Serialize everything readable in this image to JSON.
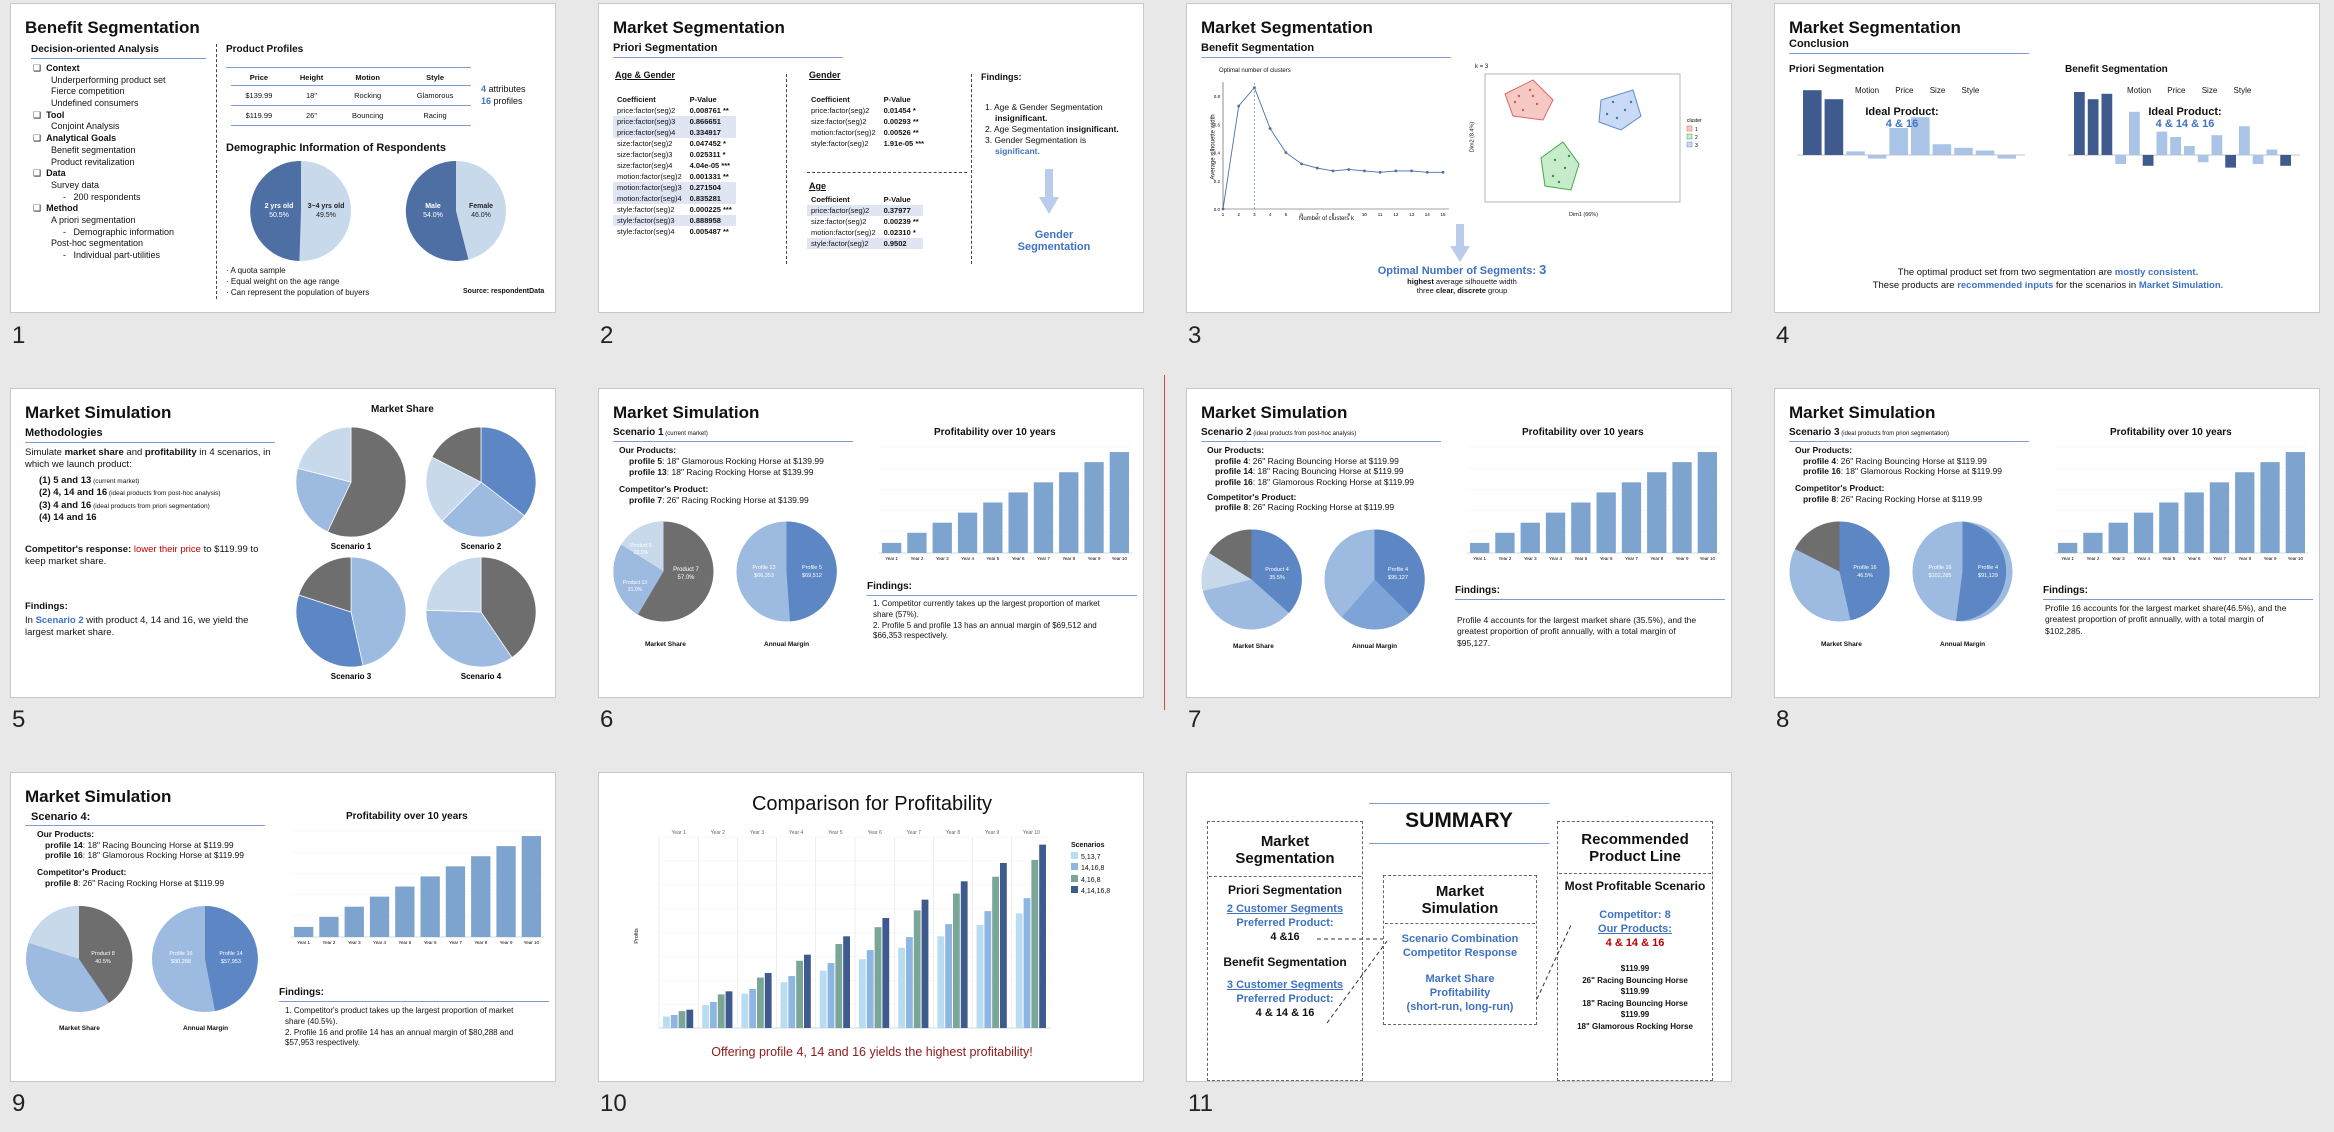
{
  "slide_numbers": [
    "1",
    "2",
    "3",
    "4",
    "5",
    "6",
    "7",
    "8",
    "9",
    "10",
    "11"
  ],
  "s1": {
    "title": "Benefit Segmentation",
    "left_head": "Decision-oriented Analysis",
    "items": [
      {
        "h": "Context",
        "l": [
          "Underperforming product set",
          "Fierce competition",
          "Undefined consumers"
        ]
      },
      {
        "h": "Tool",
        "l": [
          "Conjoint Analysis"
        ]
      },
      {
        "h": "Analytical Goals",
        "l": [
          "Benefit segmentation",
          "Product revitalization"
        ]
      },
      {
        "h": "Data",
        "l": [
          "Survey data",
          "200 respondents"
        ]
      },
      {
        "h": "Method",
        "l": [
          "A priori segmentation",
          "Demographic information",
          "Post-hoc segmentation",
          "Individual part-utilities"
        ]
      }
    ],
    "profiles_title": "Product Profiles",
    "profiles_head": [
      "Price",
      "Height",
      "Motion",
      "Style"
    ],
    "profiles_rows": [
      [
        "$139.99",
        "18\"",
        "Rocking",
        "Glamorous"
      ],
      [
        "$119.99",
        "26\"",
        "Bouncing",
        "Racing"
      ]
    ],
    "attr_num": "4",
    "attr_txt": "attributes",
    "prof_num": "16",
    "prof_txt": "profiles",
    "demo_title": "Demographic Information of Respondents",
    "pie1": [
      "2 yrs old",
      "50.5%",
      "3~4 yrs old",
      "49.5%"
    ],
    "pie2": [
      "Male",
      "54.0%",
      "Female",
      "46.0%"
    ],
    "notes": [
      "· A quota sample",
      "· Equal weight on the age range",
      "· Can represent the population of buyers"
    ],
    "source": "Source: respondentData"
  },
  "s2": {
    "title": "Market Segmentation",
    "sub": "Priori Segmentation",
    "h1": "Age & Gender",
    "h2": "Gender",
    "h3": "Findings:",
    "h4": "Age",
    "col": [
      "Coefficient",
      "P-Value"
    ],
    "ag": [
      [
        "price:factor(seg)2",
        "0.008761 **"
      ],
      [
        "price:factor(seg)3",
        "0.866651"
      ],
      [
        "price:factor(seg)4",
        "0.334917"
      ],
      [
        "size:factor(seg)2",
        "0.047452 *"
      ],
      [
        "size:factor(seg)3",
        "0.025311 *"
      ],
      [
        "size:factor(seg)4",
        "4.04e-05 ***"
      ],
      [
        "motion:factor(seg)2",
        "0.001331 **"
      ],
      [
        "motion:factor(seg)3",
        "0.271504"
      ],
      [
        "motion:factor(seg)4",
        "0.835281"
      ],
      [
        "style:factor(seg)2",
        "0.000225 ***"
      ],
      [
        "style:factor(seg)3",
        "0.888958"
      ],
      [
        "style:factor(seg)4",
        "0.005487 **"
      ]
    ],
    "g": [
      [
        "price:factor(seg)2",
        "0.01454 *"
      ],
      [
        "size:factor(seg)2",
        "0.00293 **"
      ],
      [
        "motion:factor(seg)2",
        "0.00526 **"
      ],
      [
        "style:factor(seg)2",
        "1.91e-05 ***"
      ]
    ],
    "a": [
      [
        "price:factor(seg)2",
        "0.37977"
      ],
      [
        "size:factor(seg)2",
        "0.00239 **"
      ],
      [
        "motion:factor(seg)2",
        "0.02310 *"
      ],
      [
        "style:factor(seg)2",
        "0.9502"
      ]
    ],
    "findings": [
      "1. Age & Gender Segmentation",
      "insignificant.",
      "2. Age Segmentation",
      "insignificant.",
      "3. Gender Segmentation is",
      "significant."
    ],
    "result": "Gender Segmentation"
  },
  "s3": {
    "title": "Market Segmentation",
    "sub": "Benefit Segmentation",
    "opt_label": "Optimal number of clusters",
    "xlab": "Number of clusters k",
    "ylab": "Average silhouette width",
    "k_label": "k = 3",
    "dim1": "Dim1 (66%)",
    "dim2": "Dim2 (8.4%)",
    "legend_title": "cluster",
    "legend": [
      "1",
      "2",
      "3"
    ],
    "opt_title": "Optimal Number of Segments:",
    "opt_num": "3",
    "line2a": "highest",
    "line2b": " average silhouette width",
    "line3a": "three ",
    "line3b": "clear, discrete",
    "line3c": " group",
    "sil": {
      "x": [
        1,
        2,
        3,
        4,
        5,
        6,
        7,
        8,
        9,
        10,
        11,
        12,
        13,
        14,
        15
      ],
      "y": [
        0,
        0.73,
        0.86,
        0.57,
        0.4,
        0.32,
        0.29,
        0.27,
        0.28,
        0.27,
        0.26,
        0.27,
        0.27,
        0.26,
        0.26
      ]
    }
  },
  "s4": {
    "title": "Market Segmentation",
    "sub": "Conclusion",
    "left": "Priori Segmentation",
    "right": "Benefit Segmentation",
    "attrs": [
      "Motion",
      "Price",
      "Size",
      "Style"
    ],
    "ideal": "Ideal Product:",
    "ideal_l": "4 & 16",
    "ideal_r": "4 & 14 & 16",
    "concl1a": "The optimal product set from two segmentation are ",
    "concl1b": "mostly consistent.",
    "concl2a": "These products are ",
    "concl2b": "recommended inputs",
    "concl2c": " for the scenarios in ",
    "concl2d": "Market Simulation."
  },
  "s5": {
    "title": "Market Simulation",
    "sub": "Methodologies",
    "share_title": "Market Share",
    "p1a": "Simulate ",
    "p1b": "market share",
    "p1c": " and ",
    "p1d": "profitability",
    "p1e": " in 4 scenarios, in which we launch product:",
    "list": [
      [
        "(1)  5 and 13",
        " (current market)"
      ],
      [
        "(2)  4, 14 and 16",
        " (ideal products from post-hoc analysis)"
      ],
      [
        "(3)  4 and 16",
        " (ideal products from priori segmentation)"
      ],
      [
        "(4)  14 and 16",
        ""
      ]
    ],
    "comp_a": "Competitor's response: ",
    "comp_b": "lower their price",
    "comp_c": " to $119.99 to keep market share.",
    "find_h": "Findings:",
    "find_a": "In ",
    "find_b": "Scenario 2",
    "find_c": " with product 4, 14 and 16, we yield the largest market share.",
    "scen": [
      "Scenario 1",
      "Scenario 2",
      "Scenario 3",
      "Scenario 4"
    ]
  },
  "s6": {
    "title": "Market Simulation",
    "sub": "Scenario 1",
    "sub_note": " (current market)",
    "ours": "Our Products:",
    "prods": [
      [
        "profile 5",
        ": 18\" Glamorous Rocking Horse at $139.99"
      ],
      [
        "profile 13",
        ": 18\" Racing Rocking Horse at $139.99"
      ]
    ],
    "comp_h": "Competitor's Product:",
    "comp": [
      [
        "profile 7",
        ": 26\" Racing Rocking Horse at $139.99"
      ]
    ],
    "chart_title": "Profitability over 10 years",
    "ms": "Market Share",
    "am": "Annual Margin",
    "find_h": "Findings:",
    "find": [
      "1.   Competitor currently takes up the largest proportion of market share (57%).",
      "2.   Profile 5 and profile 13 has an annual margin of $69,512 and $66,353 respectively."
    ],
    "pie_labels": [
      "Product 7",
      "57.0%",
      "Product 5",
      "22.0%",
      "Product 13",
      "21.0%"
    ],
    "am_labels": [
      "Profile 13",
      "$66,353",
      "Profile 5",
      "$69,512"
    ]
  },
  "s7": {
    "title": "Market Simulation",
    "sub": "Scenario 2",
    "sub_note": " (ideal products from post-hoc analysis)",
    "ours": "Our Products:",
    "prods": [
      [
        "profile 4",
        ": 26\" Racing Bouncing Horse at $119.99"
      ],
      [
        "profile 14",
        ": 18\" Racing Bouncing Horse at $119.99"
      ],
      [
        "profile 16",
        ": 18\" Glamorous Rocking Horse at $119.99"
      ]
    ],
    "comp_h": "Competitor's Product:",
    "comp": [
      [
        "profile 8",
        ": 26\" Racing Rocking Horse at $119.99"
      ]
    ],
    "chart_title": "Profitability over 10 years",
    "ms": "Market Share",
    "am": "Annual Margin",
    "find_h": "Findings:",
    "find": "Profile 4 accounts for the largest market share (35.5%), and the greatest proportion of profit annually, with a total margin of $95,127.",
    "pie_labels": [
      "Product 4",
      "35.5%"
    ],
    "am_labels": [
      "Profile 4",
      "$95,127"
    ]
  },
  "s8": {
    "title": "Market Simulation",
    "sub": "Scenario 3",
    "sub_note": " (ideal products from priori segmentation)",
    "ours": "Our Products:",
    "prods": [
      [
        "profile 4",
        ": 26\" Racing Bouncing Horse at $119.99"
      ],
      [
        "profile 16",
        ": 18\" Glamorous Rocking Horse at $119.99"
      ]
    ],
    "comp_h": "Competitor's Product:",
    "comp": [
      [
        "profile 8",
        ": 26\" Racing Rocking Horse at $119.99"
      ]
    ],
    "chart_title": "Profitability over 10 years",
    "ms": "Market Share",
    "am": "Annual Margin",
    "find_h": "Findings:",
    "find": "Profile 16 accounts for the largest market share(46.5%), and the greatest proportion of profit annually, with a total margin of $102,285.",
    "pie_labels": [
      "Profile 16",
      "46.5%"
    ],
    "am_labels": [
      "Profile 16",
      "$102,285",
      "Profile 4",
      "$91,129"
    ]
  },
  "s9": {
    "title": "Market Simulation",
    "sub": "Scenario 4:",
    "ours": "Our Products:",
    "prods": [
      [
        "profile 14",
        ": 18\" Racing Bouncing Horse at $119.99"
      ],
      [
        "profile 16",
        ": 18\" Glamorous Rocking Horse at $119.99"
      ]
    ],
    "comp_h": "Competitor's Product:",
    "comp": [
      [
        "profile 8",
        ": 26\" Racing Rocking Horse at $119.99"
      ]
    ],
    "chart_title": "Profitability over 10 years",
    "ms": "Market Share",
    "am": "Annual Margin",
    "find_h": "Findings:",
    "find": [
      "1.   Competitor's product takes up the largest proportion of market share (40.5%).",
      "2.   Profile 16 and profile 14 has an annual margin of $80,288 and $57,953 respectively."
    ],
    "pie_labels": [
      "Product 8",
      "40.5%"
    ],
    "am_labels": [
      "Profile 16",
      "$80,288",
      "Profile 14",
      "$57,953"
    ]
  },
  "s10": {
    "title": "Comparison for Profitability",
    "legend_title": "Scenarios",
    "legend": [
      "5,13,7",
      "14,16,8",
      "4,16,8",
      "4,14,16,8"
    ],
    "ylabel": "Profits",
    "years": [
      "Year 1",
      "Year 2",
      "Year 3",
      "Year 4",
      "Year 5",
      "Year 6",
      "Year 7",
      "Year 8",
      "Year 9",
      "Year 10"
    ],
    "footer": "Offering profile 4, 14 and 16 yields the highest profitability!"
  },
  "s11": {
    "title": "SUMMARY",
    "c1_title": "Market Segmentation",
    "c1_a": "Priori Segmentation",
    "c1_a1": "2 Customer Segments",
    "c1_a2": "Preferred Product:",
    "c1_a3": "4 &16",
    "c1_b": "Benefit Segmentation",
    "c1_b1": "3 Customer Segments",
    "c1_b2": "Preferred Product:",
    "c1_b3": "4 & 14 & 16",
    "c2_title": "Market Simulation",
    "c2_1": "Scenario Combination",
    "c2_2": "Competitor Response",
    "c2_3": "Market Share",
    "c2_4": "Profitability",
    "c2_5": "(short-run, long-run)",
    "c3_title": "Recommended Product Line",
    "c3_1": "Most Profitable Scenario",
    "c3_2": "Competitor: 8",
    "c3_3": "Our Products:",
    "c3_4": "4 & 14 & 16",
    "c3_list": [
      "$119.99",
      "26\" Racing Bouncing Horse",
      "$119.99",
      "18\" Racing Bouncing Horse",
      "$119.99",
      "18\" Glamorous Rocking Horse"
    ]
  },
  "chart_data": [
    {
      "type": "bar",
      "title": "Profitability over 10 years",
      "categories": [
        "Year 1",
        "Year 2",
        "Year 3",
        "Year 4",
        "Year 5",
        "Year 6",
        "Year 7",
        "Year 8",
        "Year 9",
        "Year 10"
      ],
      "values": [
        30,
        60,
        90,
        120,
        150,
        180,
        210,
        240,
        270,
        300
      ]
    },
    {
      "type": "bar",
      "title": "Profitability over 10 years",
      "categories": [
        "Year 1",
        "Year 2",
        "Year 3",
        "Year 4",
        "Year 5",
        "Year 6",
        "Year 7",
        "Year 8",
        "Year 9",
        "Year 10"
      ],
      "values": [
        34,
        68,
        102,
        136,
        170,
        204,
        238,
        272,
        306,
        340
      ]
    },
    {
      "type": "bar",
      "title": "Profitability over 10 years",
      "categories": [
        "Year 1",
        "Year 2",
        "Year 3",
        "Year 4",
        "Year 5",
        "Year 6",
        "Year 7",
        "Year 8",
        "Year 9",
        "Year 10"
      ],
      "values": [
        32,
        64,
        96,
        128,
        160,
        192,
        224,
        256,
        288,
        320
      ]
    },
    {
      "type": "bar",
      "title": "Profitability over 10 years",
      "categories": [
        "Year 1",
        "Year 2",
        "Year 3",
        "Year 4",
        "Year 5",
        "Year 6",
        "Year 7",
        "Year 8",
        "Year 9",
        "Year 10"
      ],
      "values": [
        26,
        52,
        78,
        104,
        130,
        156,
        182,
        208,
        234,
        260
      ]
    },
    {
      "type": "bar",
      "title": "Comparison for Profitability",
      "categories": [
        "Year 1",
        "Year 2",
        "Year 3",
        "Year 4",
        "Year 5",
        "Year 6",
        "Year 7",
        "Year 8",
        "Year 9",
        "Year 10"
      ],
      "series": [
        {
          "name": "5,13,7",
          "values": [
            15,
            30,
            45,
            60,
            75,
            90,
            105,
            120,
            135,
            150
          ]
        },
        {
          "name": "14,16,8",
          "values": [
            17,
            34,
            51,
            68,
            85,
            102,
            119,
            136,
            153,
            170
          ]
        },
        {
          "name": "4,16,8",
          "values": [
            22,
            44,
            66,
            88,
            110,
            132,
            154,
            176,
            198,
            220
          ]
        },
        {
          "name": "4,14,16,8",
          "values": [
            24,
            48,
            72,
            96,
            120,
            144,
            168,
            192,
            216,
            240
          ]
        }
      ]
    }
  ]
}
